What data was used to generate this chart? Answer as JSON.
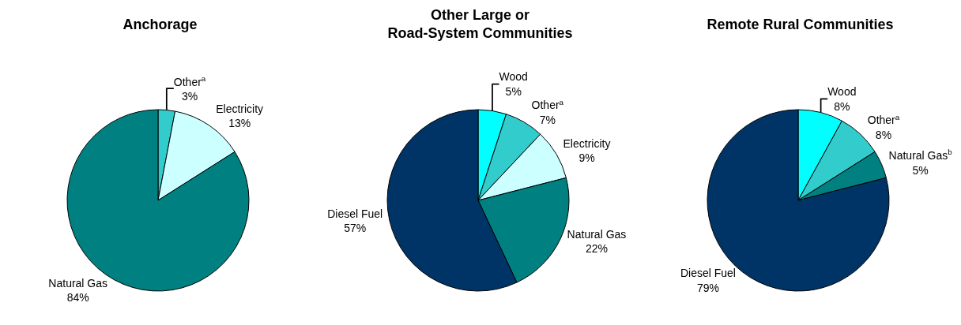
{
  "chart_data": [
    {
      "type": "pie",
      "title": "Anchorage",
      "categories": [
        "Other$^{a}$",
        "Electricity",
        "Natural Gas"
      ],
      "values": [
        3,
        13,
        84
      ],
      "value_labels": [
        "3%",
        "13%",
        "84%"
      ],
      "colors": [
        "#33cccc",
        "#ccffff",
        "#008080"
      ],
      "legend": false
    },
    {
      "type": "pie",
      "title": "Other Large or\nRoad-System Communities",
      "categories": [
        "Wood",
        "Other$^{a}$",
        "Electricity",
        "Natural Gas",
        "Diesel Fuel"
      ],
      "values": [
        5,
        7,
        9,
        22,
        57
      ],
      "value_labels": [
        "5%",
        "7%",
        "9%",
        "22%",
        "57%"
      ],
      "colors": [
        "#00ffff",
        "#33cccc",
        "#ccffff",
        "#008080",
        "#003366"
      ],
      "legend": false
    },
    {
      "type": "pie",
      "title": "Remote Rural Communities",
      "categories": [
        "Wood",
        "Other$^{a}$",
        "Natural Gas$^{b}$",
        "Diesel Fuel"
      ],
      "values": [
        8,
        8,
        5,
        79
      ],
      "value_labels": [
        "8%",
        "8%",
        "5%",
        "79%"
      ],
      "colors": [
        "#00ffff",
        "#33cccc",
        "#008080",
        "#003366"
      ],
      "legend": false
    }
  ]
}
